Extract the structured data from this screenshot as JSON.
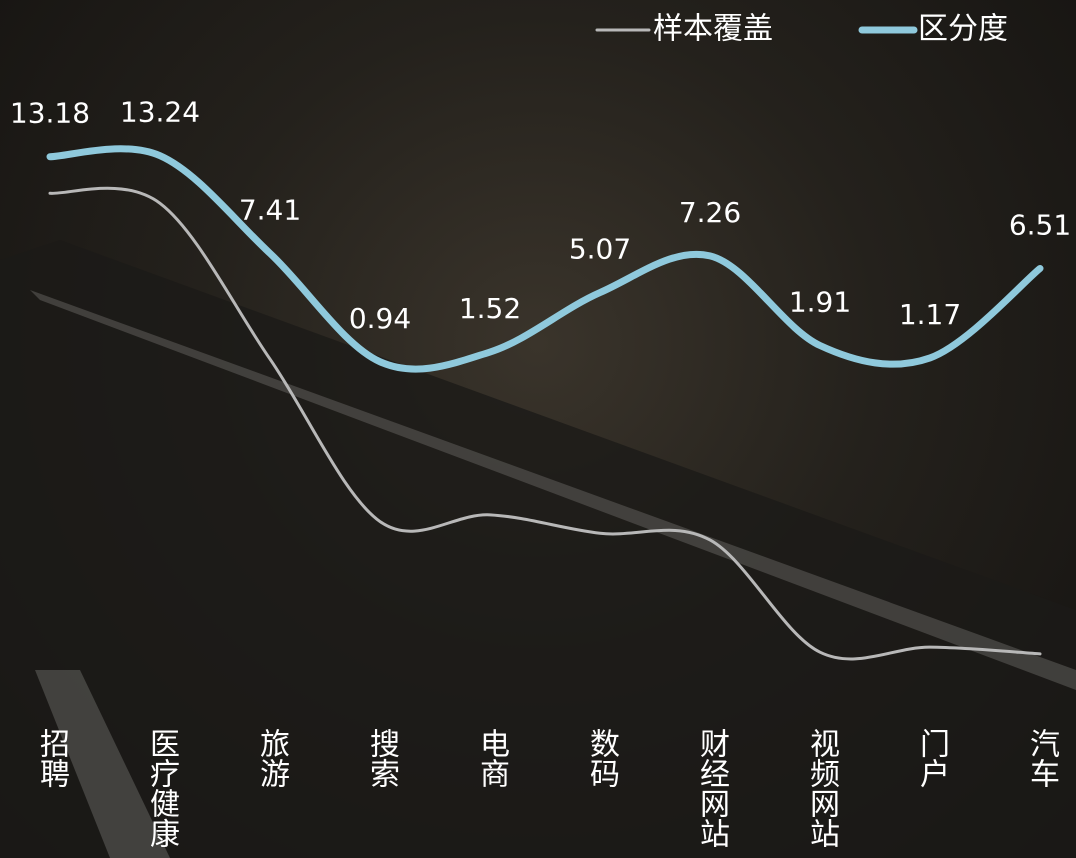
{
  "chart_data": {
    "type": "line",
    "categories": [
      "招聘",
      "医疗健康",
      "旅游",
      "搜索",
      "电商",
      "数码",
      "财经网站",
      "视频网站",
      "门户",
      "汽车"
    ],
    "series": [
      {
        "name": "样本覆盖",
        "color": "#b8b8b8",
        "values": [
          11.0,
          10.4,
          1.1,
          -8.6,
          -8.2,
          -9.3,
          -9.7,
          -16.4,
          -16.1,
          -16.5
        ]
      },
      {
        "name": "区分度",
        "color": "#8fc9dc",
        "values": [
          13.18,
          13.24,
          7.41,
          0.94,
          1.52,
          5.07,
          7.26,
          1.91,
          1.17,
          6.51
        ]
      }
    ],
    "ylim": [
      -18,
      18
    ],
    "grid": false,
    "legend": "top-right"
  }
}
